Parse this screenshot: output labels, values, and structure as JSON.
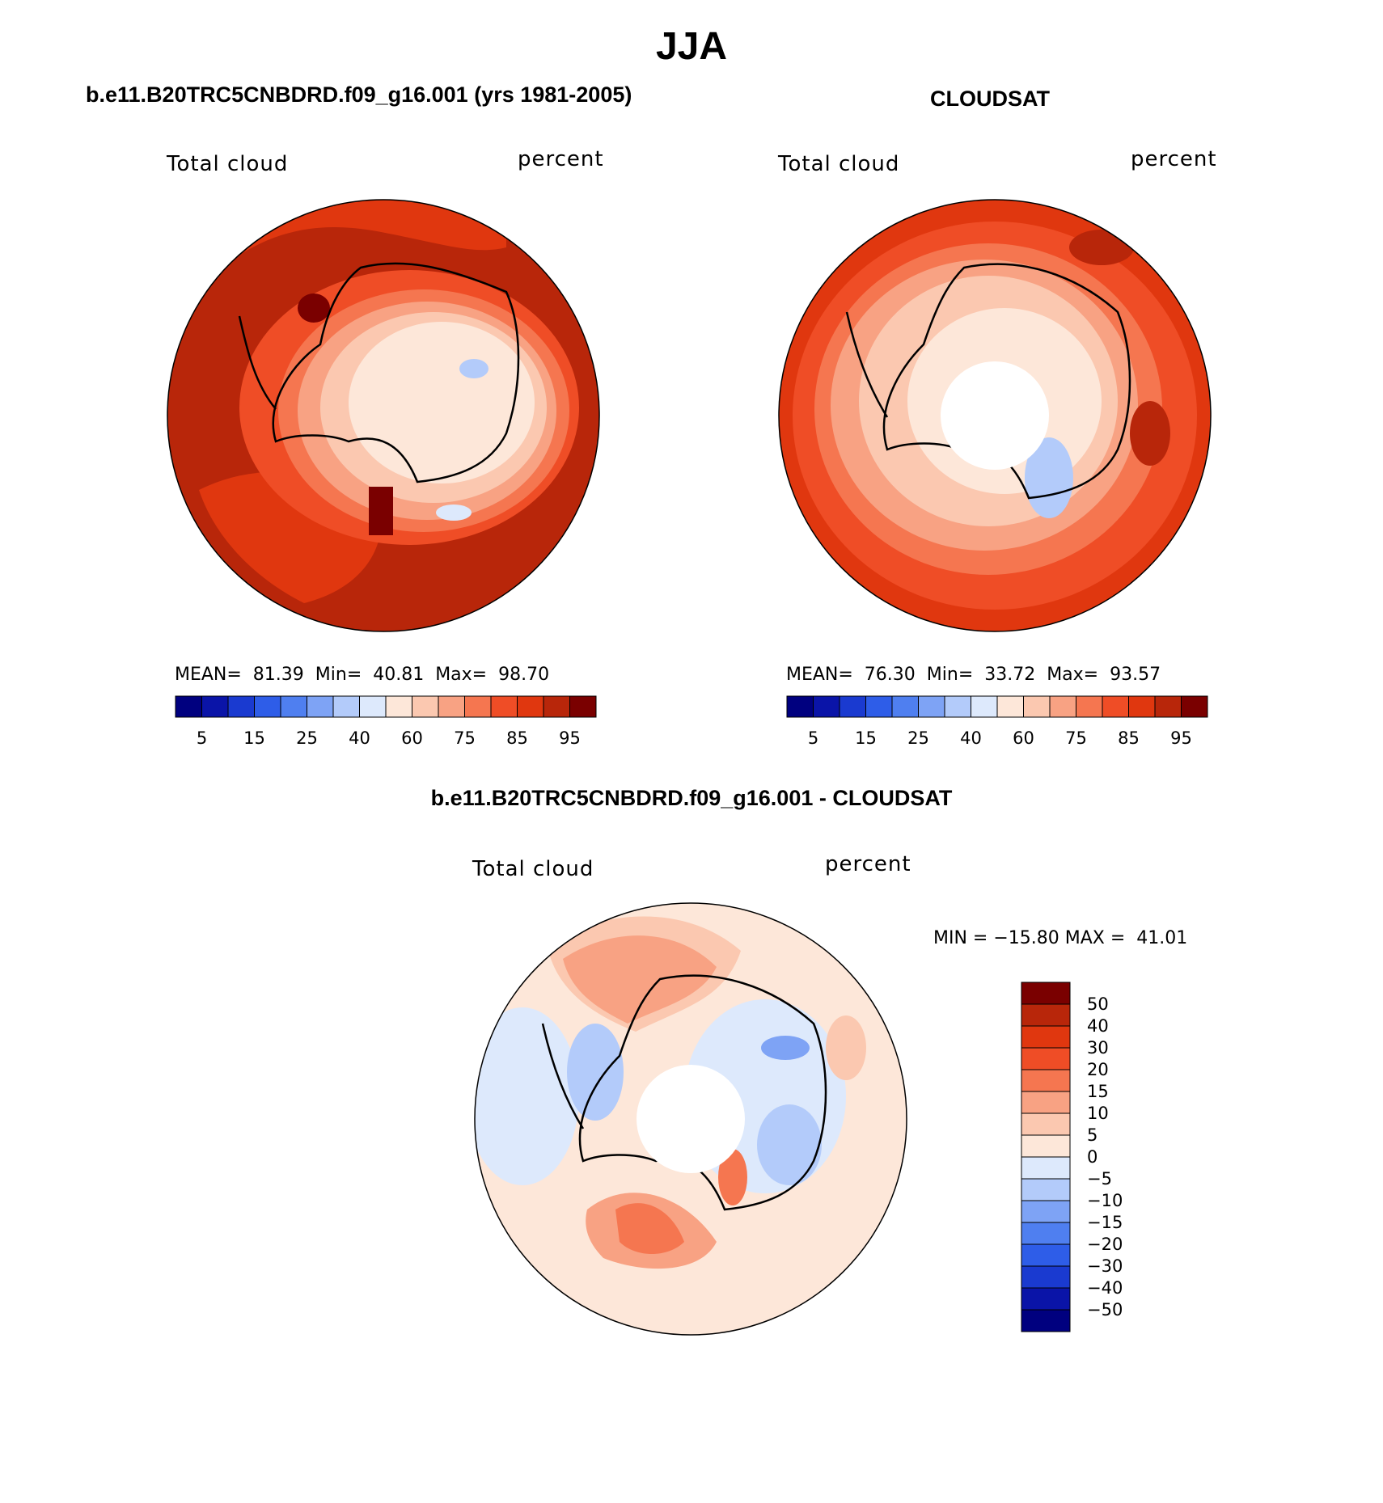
{
  "title": "JJA",
  "panels": [
    {
      "case": "b.e11.B20TRC5CNBDRD.f09_g16.001 (yrs 1981-2005)",
      "variable": "Total cloud",
      "units": "percent",
      "stats_text": "MEAN=  81.39  Min=  40.81  Max=  98.70"
    },
    {
      "case": "CLOUDSAT",
      "variable": "Total cloud",
      "units": "percent",
      "stats_text": "MEAN=  76.30  Min=  33.72  Max=  93.57"
    },
    {
      "case": "b.e11.B20TRC5CNBDRD.f09_g16.001 - CLOUDSAT",
      "variable": "Total cloud",
      "units": "percent",
      "stats_text": "MIN = −15.80 MAX =  41.01"
    }
  ],
  "abs_colorbar": {
    "colors": [
      "#00007f",
      "#0a14a8",
      "#1a3ad0",
      "#2e5de8",
      "#4f7ff0",
      "#7ea3f5",
      "#b3cbfa",
      "#dde9fc",
      "#fde7d9",
      "#fbc8b0",
      "#f8a283",
      "#f57650",
      "#ef4d26",
      "#e0370f",
      "#b8260a",
      "#7a0000"
    ],
    "tick_labels": [
      "5",
      "15",
      "25",
      "40",
      "60",
      "75",
      "85",
      "95"
    ]
  },
  "diff_colorbar": {
    "colors": [
      "#00007f",
      "#0a14a8",
      "#1a3ad0",
      "#2e5de8",
      "#4f7ff0",
      "#7ea3f5",
      "#b3cbfa",
      "#dde9fc",
      "#fde7d9",
      "#fbc8b0",
      "#f8a283",
      "#f57650",
      "#ef4d26",
      "#e0370f",
      "#b8260a",
      "#7a0000"
    ],
    "tick_labels": [
      "50",
      "40",
      "30",
      "20",
      "15",
      "10",
      "5",
      "0",
      "−5",
      "−10",
      "−15",
      "−20",
      "−30",
      "−40",
      "−50"
    ]
  }
}
